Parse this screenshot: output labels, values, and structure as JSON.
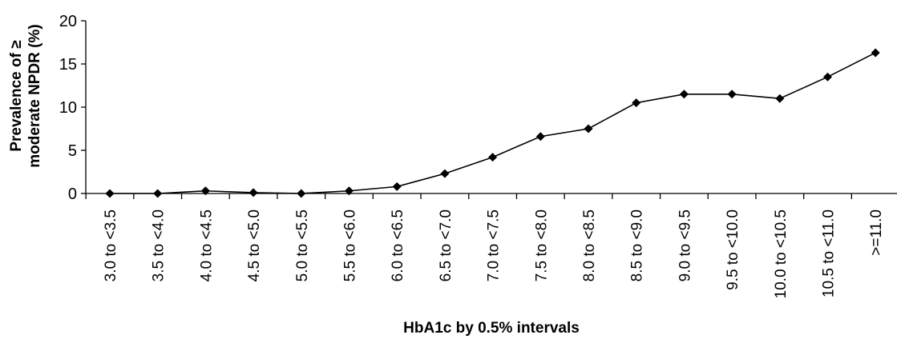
{
  "chart_data": {
    "type": "line",
    "title": "",
    "xlabel": "HbA1c by 0.5% intervals",
    "ylabel": "Prevalence of ≥ moderate NPDR (%)",
    "ylabel_lines": [
      "Prevalence of ≥",
      "moderate NPDR (%)"
    ],
    "ylim": [
      0,
      20
    ],
    "yticks": [
      "0",
      "5",
      "10",
      "15",
      "20"
    ],
    "grid": false,
    "legend": "none",
    "marker": "diamond",
    "line_color": "#000000",
    "categories": [
      "3.0 to <3.5",
      "3.5 to <4.0",
      "4.0 to <4.5",
      "4.5 to <5.0",
      "5.0 to <5.5",
      "5.5 to <6.0",
      "6.0 to <6.5",
      "6.5 to <7.0",
      "7.0 to <7.5",
      "7.5 to <8.0",
      "8.0 to <8.5",
      "8.5 to <9.0",
      "9.0 to <9.5",
      "9.5 to <10.0",
      "10.0 to <10.5",
      "10.5 to <11.0",
      ">=11.0"
    ],
    "values": [
      0,
      0,
      0.3,
      0.1,
      0,
      0.3,
      0.8,
      2.3,
      4.2,
      6.6,
      7.5,
      10.5,
      11.5,
      11.5,
      11.0,
      13.5,
      16.3
    ]
  }
}
